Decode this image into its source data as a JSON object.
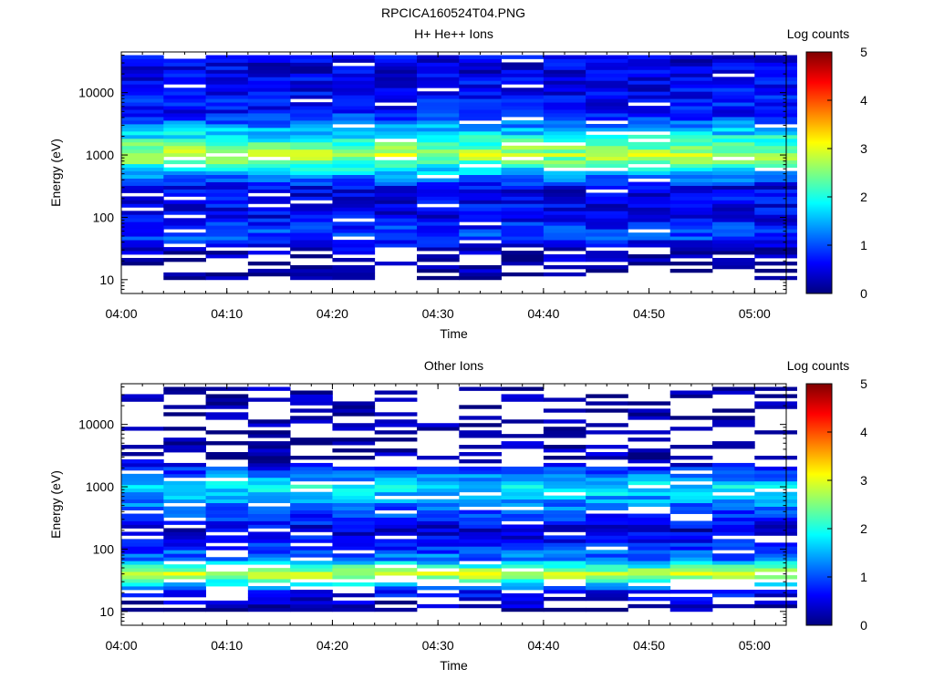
{
  "figure": {
    "title": "RPCICA160524T04.PNG"
  },
  "colorbar": {
    "title": "Log counts",
    "ticks": [
      "0",
      "1",
      "2",
      "3",
      "4",
      "5"
    ],
    "range": [
      0,
      5
    ],
    "colors": [
      "#00007f",
      "#0000ff",
      "#007fff",
      "#00ffff",
      "#7fff7f",
      "#ffff00",
      "#ff7f00",
      "#ff0000",
      "#7f0000"
    ]
  },
  "chart_data": [
    {
      "type": "heatmap",
      "title": "H+ He++ Ions",
      "xlabel": "Time",
      "ylabel": "Energy (eV)",
      "yscale": "log",
      "xlim": [
        "04:00",
        "05:03"
      ],
      "ylim": [
        6,
        45000
      ],
      "xticks": [
        "04:00",
        "04:10",
        "04:20",
        "04:30",
        "04:40",
        "04:50",
        "05:00"
      ],
      "yticks": [
        "10",
        "100",
        "1000",
        "10000"
      ],
      "time_bins": [
        "04:02",
        "04:06",
        "04:10",
        "04:14",
        "04:18",
        "04:22",
        "04:26",
        "04:30",
        "04:34",
        "04:38",
        "04:42",
        "04:46",
        "04:50",
        "04:54",
        "04:58",
        "05:02"
      ],
      "energy_bands": [
        {
          "energy_eV": 10,
          "log_counts": 0.0
        },
        {
          "energy_eV": 30,
          "log_counts": 0.3
        },
        {
          "energy_eV": 50,
          "log_counts": 1.0
        },
        {
          "energy_eV": 100,
          "log_counts": 0.6
        },
        {
          "energy_eV": 300,
          "log_counts": 0.5
        },
        {
          "energy_eV": 1000,
          "log_counts": 2.8
        },
        {
          "energy_eV": 2200,
          "log_counts": 1.7
        },
        {
          "energy_eV": 5000,
          "log_counts": 0.7
        },
        {
          "energy_eV": 20000,
          "log_counts": 0.5
        }
      ]
    },
    {
      "type": "heatmap",
      "title": "Other Ions",
      "xlabel": "Time",
      "ylabel": "Energy (eV)",
      "yscale": "log",
      "xlim": [
        "04:00",
        "05:03"
      ],
      "ylim": [
        6,
        45000
      ],
      "xticks": [
        "04:00",
        "04:10",
        "04:20",
        "04:30",
        "04:40",
        "04:50",
        "05:00"
      ],
      "yticks": [
        "10",
        "100",
        "1000",
        "10000"
      ],
      "time_bins": [
        "04:02",
        "04:06",
        "04:10",
        "04:14",
        "04:18",
        "04:22",
        "04:26",
        "04:30",
        "04:34",
        "04:38",
        "04:42",
        "04:46",
        "04:50",
        "04:54",
        "04:58",
        "05:02"
      ],
      "energy_bands": [
        {
          "energy_eV": 10,
          "log_counts": 0.2
        },
        {
          "energy_eV": 20,
          "log_counts": 0.6
        },
        {
          "energy_eV": 40,
          "log_counts": 3.0
        },
        {
          "energy_eV": 70,
          "log_counts": 1.2
        },
        {
          "energy_eV": 200,
          "log_counts": 0.4
        },
        {
          "energy_eV": 1000,
          "log_counts": 1.8
        },
        {
          "energy_eV": 3000,
          "log_counts": 0.2
        },
        {
          "energy_eV": 20000,
          "log_counts": 0.1
        }
      ]
    }
  ]
}
